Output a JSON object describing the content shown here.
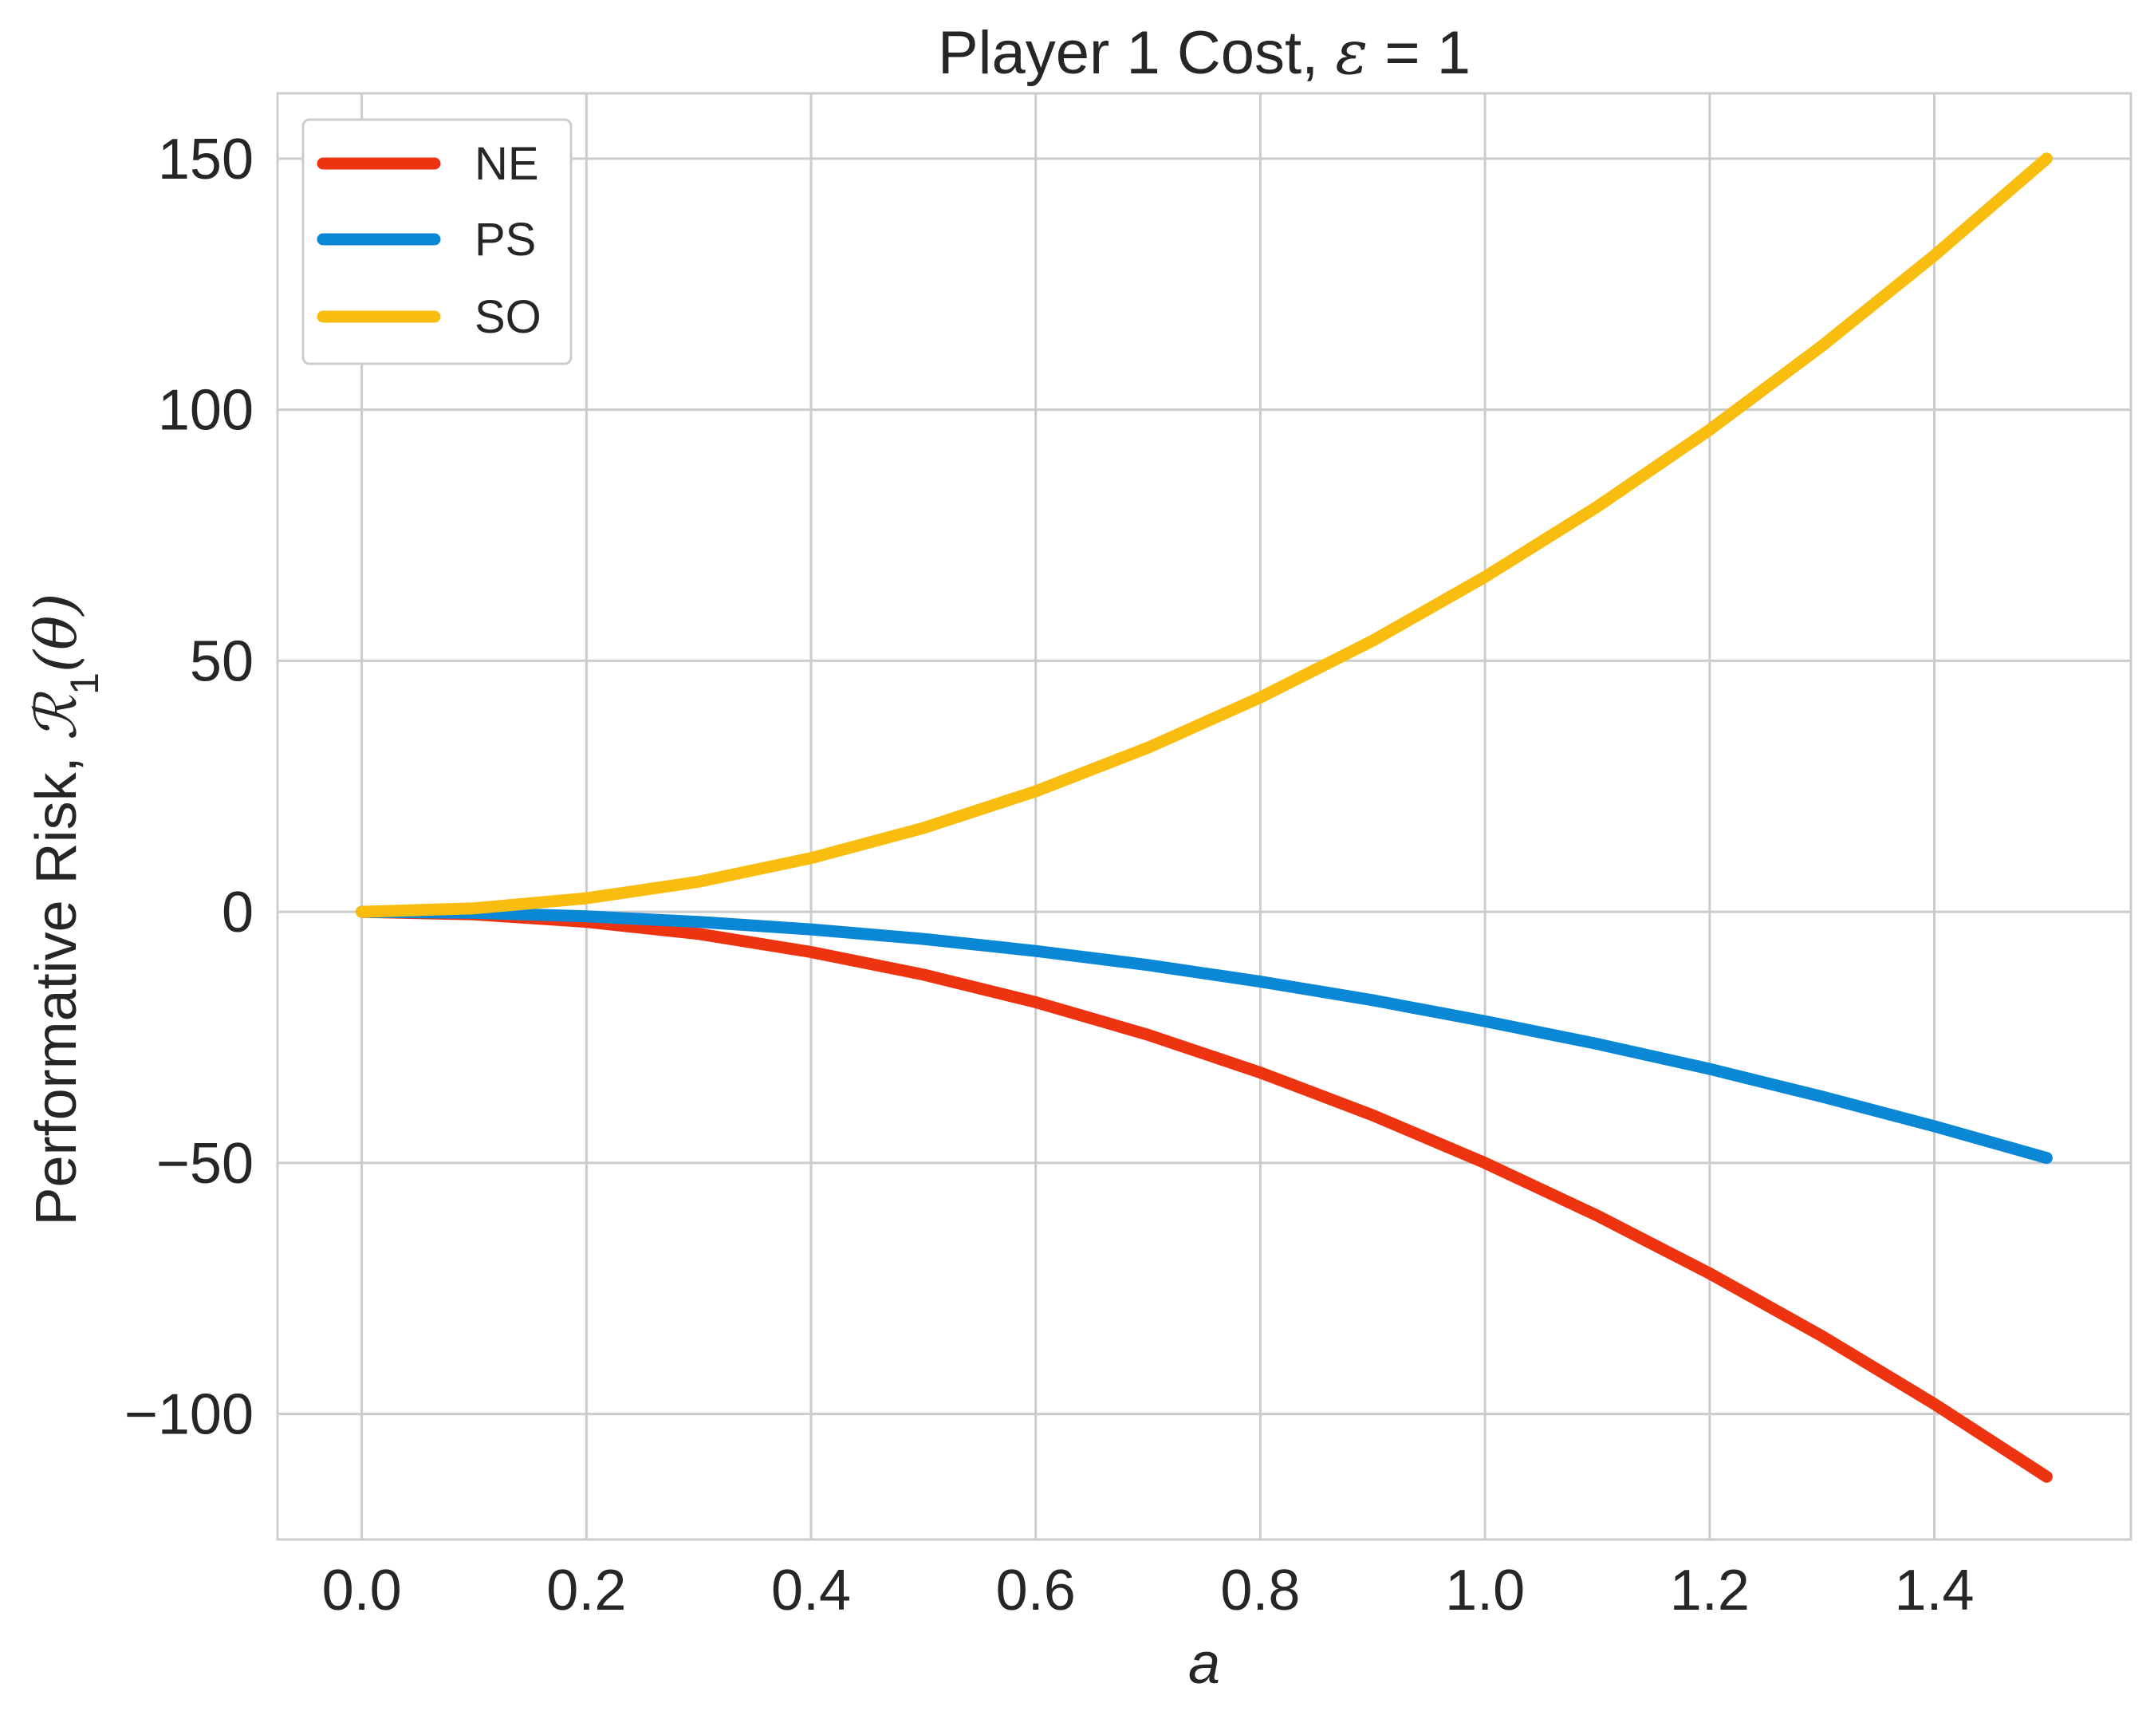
{
  "chart_data": {
    "type": "line",
    "title": {
      "prefix": "Player 1 Cost, ",
      "symbol": "ε",
      "suffix": " = 1"
    },
    "xlabel": "a",
    "ylabel": {
      "prefix": "Performative Risk, ",
      "symbol": "ℛ",
      "subscript": "1",
      "arg": "(θ)"
    },
    "xlim": [
      -0.075,
      1.575
    ],
    "ylim": [
      -125,
      163
    ],
    "x_ticks": [
      0.0,
      0.2,
      0.4,
      0.6,
      0.8,
      1.0,
      1.2,
      1.4
    ],
    "x_tick_labels": [
      "0.0",
      "0.2",
      "0.4",
      "0.6",
      "0.8",
      "1.0",
      "1.2",
      "1.4"
    ],
    "y_ticks": [
      -100,
      -50,
      0,
      50,
      100,
      150
    ],
    "y_tick_labels": [
      "−100",
      "−50",
      "0",
      "50",
      "100",
      "150"
    ],
    "grid": true,
    "legend_position": "top-left",
    "x": [
      0.0,
      0.1,
      0.2,
      0.3,
      0.4,
      0.5,
      0.6,
      0.7,
      0.8,
      0.9,
      1.0,
      1.1,
      1.2,
      1.3,
      1.4,
      1.5
    ],
    "series": [
      {
        "name": "NE",
        "color": "#ee3311",
        "values": [
          0.0,
          -0.5,
          -2.0,
          -4.4,
          -8.0,
          -12.5,
          -18.0,
          -24.5,
          -32.0,
          -40.5,
          -50.0,
          -60.5,
          -72.0,
          -84.5,
          -98.0,
          -112.5
        ]
      },
      {
        "name": "PS",
        "color": "#0a88d6",
        "values": [
          0.0,
          -0.2,
          -0.9,
          -2.0,
          -3.5,
          -5.4,
          -7.8,
          -10.6,
          -13.9,
          -17.6,
          -21.8,
          -26.3,
          -31.3,
          -36.8,
          -42.7,
          -49.0
        ]
      },
      {
        "name": "SO",
        "color": "#f9bd0f",
        "values": [
          0.0,
          0.7,
          2.7,
          6.0,
          10.7,
          16.7,
          24.0,
          32.7,
          42.7,
          54.0,
          66.7,
          80.7,
          96.0,
          112.7,
          130.7,
          150.0
        ]
      }
    ]
  }
}
